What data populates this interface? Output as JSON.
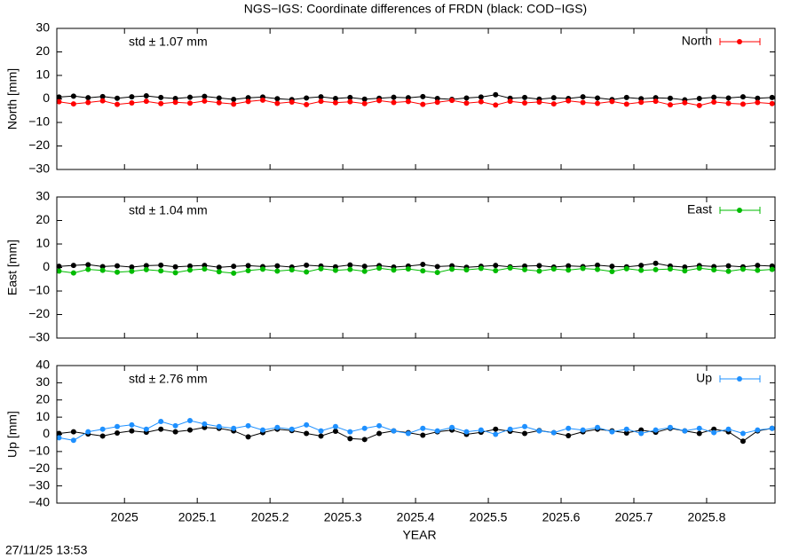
{
  "title": "NGS−IGS: Coordinate differences of FRDN (black: COD−IGS)",
  "timestamp": "27/11/25 13:53",
  "chart_data": [
    {
      "type": "line",
      "ylabel": "North [mm]",
      "annotation": "std ± 1.07 mm",
      "annotation_color": "#ff0000",
      "xlim": [
        2024.907,
        2025.894
      ],
      "ylim": [
        -30,
        30
      ],
      "yticks": [
        30,
        20,
        10,
        0,
        {
          "value": -10,
          "label": "−10"
        },
        {
          "value": -20,
          "label": "−20"
        },
        {
          "value": -30,
          "label": "−30"
        }
      ],
      "x": [
        2024.91,
        2024.93,
        2024.95,
        2024.97,
        2024.99,
        2025.01,
        2025.03,
        2025.05,
        2025.07,
        2025.09,
        2025.11,
        2025.13,
        2025.15,
        2025.17,
        2025.19,
        2025.21,
        2025.23,
        2025.25,
        2025.27,
        2025.29,
        2025.31,
        2025.33,
        2025.35,
        2025.37,
        2025.39,
        2025.41,
        2025.43,
        2025.45,
        2025.47,
        2025.49,
        2025.51,
        2025.53,
        2025.55,
        2025.57,
        2025.59,
        2025.61,
        2025.63,
        2025.65,
        2025.67,
        2025.69,
        2025.71,
        2025.73,
        2025.75,
        2025.77,
        2025.79,
        2025.81,
        2025.83,
        2025.85,
        2025.87,
        2025.89
      ],
      "series": [
        {
          "color": "#000000",
          "values": [
            0.8,
            1.2,
            0.5,
            1.0,
            0.3,
            0.9,
            1.3,
            0.6,
            0.2,
            0.7,
            1.1,
            0.4,
            -0.2,
            0.5,
            0.8,
            0.1,
            -0.3,
            0.4,
            0.9,
            0.2,
            0.6,
            -0.1,
            0.3,
            0.7,
            0.5,
            1.0,
            0.2,
            -0.2,
            0.4,
            0.8,
            1.8,
            0.3,
            0.6,
            -0.1,
            0.5,
            0.2,
            0.9,
            0.4,
            -0.3,
            0.6,
            0.1,
            0.5,
            0.3,
            -0.4,
            0.2,
            0.7,
            0.4,
            0.9,
            0.3,
            0.6
          ]
        },
        {
          "name": "North",
          "color": "#ff0000",
          "values": [
            -1.2,
            -2.1,
            -1.5,
            -0.8,
            -2.3,
            -1.7,
            -1.0,
            -2.0,
            -1.4,
            -1.8,
            -0.9,
            -1.6,
            -2.2,
            -1.1,
            -0.5,
            -1.9,
            -1.3,
            -2.4,
            -1.0,
            -1.6,
            -1.2,
            -2.0,
            -0.7,
            -1.5,
            -1.1,
            -2.3,
            -1.4,
            -0.6,
            -1.8,
            -1.2,
            -2.6,
            -1.0,
            -1.7,
            -1.3,
            -2.1,
            -0.8,
            -1.5,
            -1.9,
            -1.1,
            -2.2,
            -1.4,
            -1.0,
            -2.5,
            -1.6,
            -2.8,
            -1.3,
            -1.9,
            -2.2,
            -1.5,
            -2.0
          ]
        }
      ]
    },
    {
      "type": "line",
      "ylabel": "East [mm]",
      "annotation": "std ± 1.04 mm",
      "annotation_color": "#00bb00",
      "xlim": [
        2024.907,
        2025.894
      ],
      "ylim": [
        -30,
        30
      ],
      "yticks": [
        30,
        20,
        10,
        0,
        {
          "value": -10,
          "label": "−10"
        },
        {
          "value": -20,
          "label": "−20"
        },
        {
          "value": -30,
          "label": "−30"
        }
      ],
      "x": [
        2024.91,
        2024.93,
        2024.95,
        2024.97,
        2024.99,
        2025.01,
        2025.03,
        2025.05,
        2025.07,
        2025.09,
        2025.11,
        2025.13,
        2025.15,
        2025.17,
        2025.19,
        2025.21,
        2025.23,
        2025.25,
        2025.27,
        2025.29,
        2025.31,
        2025.33,
        2025.35,
        2025.37,
        2025.39,
        2025.41,
        2025.43,
        2025.45,
        2025.47,
        2025.49,
        2025.51,
        2025.53,
        2025.55,
        2025.57,
        2025.59,
        2025.61,
        2025.63,
        2025.65,
        2025.67,
        2025.69,
        2025.71,
        2025.73,
        2025.75,
        2025.77,
        2025.79,
        2025.81,
        2025.83,
        2025.85,
        2025.87,
        2025.89
      ],
      "series": [
        {
          "color": "#000000",
          "values": [
            0.5,
            0.9,
            1.2,
            0.4,
            0.7,
            0.2,
            0.8,
            1.0,
            0.3,
            0.6,
            0.9,
            0.1,
            0.5,
            0.8,
            0.4,
            0.7,
            0.2,
            1.0,
            0.6,
            0.3,
            1.1,
            0.5,
            0.8,
            0.2,
            0.6,
            1.3,
            0.4,
            0.7,
            0.1,
            0.5,
            0.9,
            0.3,
            0.6,
            0.8,
            0.2,
            0.7,
            0.4,
            1.0,
            0.5,
            0.3,
            0.9,
            1.8,
            0.6,
            0.2,
            0.8,
            0.4,
            0.7,
            0.3,
            0.9,
            0.6
          ]
        },
        {
          "name": "East",
          "color": "#00bb00",
          "values": [
            -1.5,
            -2.3,
            -0.8,
            -1.2,
            -2.0,
            -1.6,
            -0.9,
            -1.4,
            -2.2,
            -1.1,
            -0.6,
            -1.8,
            -2.4,
            -1.3,
            -0.7,
            -1.5,
            -1.0,
            -1.9,
            -0.5,
            -1.2,
            -0.8,
            -1.6,
            -0.3,
            -1.1,
            -0.6,
            -1.4,
            -2.1,
            -0.7,
            -1.0,
            -0.4,
            -1.3,
            -0.2,
            -0.9,
            -1.5,
            -0.6,
            -1.1,
            -0.4,
            -0.8,
            -1.7,
            -0.5,
            -1.2,
            -0.9,
            -0.6,
            -1.4,
            -0.3,
            -1.0,
            -1.6,
            -0.7,
            -1.2,
            -0.8
          ]
        }
      ]
    },
    {
      "type": "line",
      "ylabel": "Up [mm]",
      "annotation": "std ± 2.76 mm",
      "annotation_color": "#1e90ff",
      "xlabel": "YEAR",
      "xlim": [
        2024.907,
        2025.894
      ],
      "xticks": [
        2025,
        2025.1,
        2025.2,
        2025.3,
        2025.4,
        2025.5,
        2025.6,
        2025.7,
        2025.8
      ],
      "ylim": [
        -40,
        40
      ],
      "yticks": [
        40,
        30,
        20,
        10,
        0,
        {
          "value": -10,
          "label": "−10"
        },
        {
          "value": -20,
          "label": "−20"
        },
        {
          "value": -30,
          "label": "−30"
        },
        {
          "value": -40,
          "label": "−40"
        }
      ],
      "x": [
        2024.91,
        2024.93,
        2024.95,
        2024.97,
        2024.99,
        2025.01,
        2025.03,
        2025.05,
        2025.07,
        2025.09,
        2025.11,
        2025.13,
        2025.15,
        2025.17,
        2025.19,
        2025.21,
        2025.23,
        2025.25,
        2025.27,
        2025.29,
        2025.31,
        2025.33,
        2025.35,
        2025.37,
        2025.39,
        2025.41,
        2025.43,
        2025.45,
        2025.47,
        2025.49,
        2025.51,
        2025.53,
        2025.55,
        2025.57,
        2025.59,
        2025.61,
        2025.63,
        2025.65,
        2025.67,
        2025.69,
        2025.71,
        2025.73,
        2025.75,
        2025.77,
        2025.79,
        2025.81,
        2025.83,
        2025.85,
        2025.87,
        2025.89
      ],
      "series": [
        {
          "color": "#000000",
          "values": [
            0.5,
            1.5,
            0.2,
            -1.0,
            0.8,
            2.0,
            1.2,
            3.0,
            1.5,
            2.5,
            4.0,
            3.5,
            2.0,
            -1.5,
            1.0,
            3.0,
            2.2,
            0.5,
            -1.0,
            1.8,
            -2.5,
            -3.0,
            0.5,
            2.0,
            1.0,
            -0.5,
            1.5,
            2.5,
            0.0,
            1.2,
            3.0,
            1.8,
            0.5,
            2.2,
            1.0,
            -0.8,
            1.5,
            3.0,
            2.0,
            0.8,
            2.5,
            1.2,
            3.5,
            2.0,
            0.5,
            3.0,
            1.5,
            -4.0,
            2.0,
            3.5
          ]
        },
        {
          "name": "Up",
          "color": "#1e90ff",
          "values": [
            -2.0,
            -3.5,
            1.5,
            3.0,
            4.5,
            5.5,
            3.0,
            7.5,
            5.0,
            8.0,
            6.0,
            4.5,
            3.5,
            5.0,
            2.5,
            4.0,
            3.0,
            5.5,
            2.0,
            4.5,
            1.5,
            3.5,
            5.0,
            2.0,
            0.5,
            3.5,
            2.0,
            4.0,
            1.5,
            2.5,
            0.0,
            3.0,
            4.5,
            2.0,
            1.0,
            3.5,
            2.5,
            4.0,
            1.5,
            3.0,
            0.5,
            2.5,
            4.0,
            2.0,
            3.5,
            1.0,
            3.0,
            0.5,
            2.5,
            3.5
          ]
        }
      ]
    }
  ]
}
